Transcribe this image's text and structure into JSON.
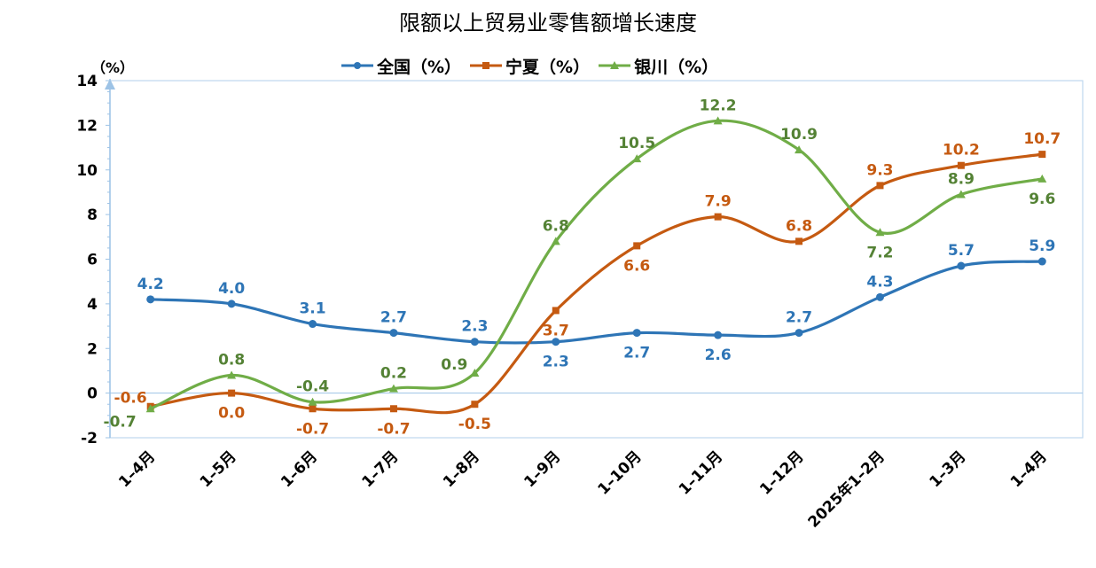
{
  "chart_data": {
    "type": "line",
    "title": "限额以上贸易业零售额增长速度",
    "ylabel": "（%）",
    "ylim": [
      -2,
      14
    ],
    "yticks": [
      -2,
      0,
      2,
      4,
      6,
      8,
      10,
      12,
      14
    ],
    "categories": [
      "1–4月",
      "1–5月",
      "1–6月",
      "1–7月",
      "1–8月",
      "1–9月",
      "1–10月",
      "1–11月",
      "1–12月",
      "2025年1–2月",
      "1–3月",
      "1–4月"
    ],
    "legend_position": "top-center",
    "grid": false,
    "series": [
      {
        "name": "全国（%）",
        "color": "#2E75B6",
        "marker": "circle",
        "values": [
          4.2,
          4.0,
          3.1,
          2.7,
          2.3,
          2.3,
          2.7,
          2.6,
          2.7,
          4.3,
          5.7,
          5.9
        ],
        "labels": [
          "4.2",
          "4.0",
          "3.1",
          "2.7",
          "2.3",
          "2.3",
          "2.7",
          "2.6",
          "2.7",
          "4.3",
          "5.7",
          "5.9"
        ]
      },
      {
        "name": "宁夏（%）",
        "color": "#C55A11",
        "marker": "square",
        "values": [
          -0.6,
          0.0,
          -0.7,
          -0.7,
          -0.5,
          3.7,
          6.6,
          7.9,
          6.8,
          9.3,
          10.2,
          10.7
        ],
        "labels": [
          "-0.6",
          "0.0",
          "-0.7",
          "-0.7",
          "-0.5",
          "3.7",
          "6.6",
          "7.9",
          "6.8",
          "9.3",
          "10.2",
          "10.7"
        ]
      },
      {
        "name": "银川（%）",
        "color": "#548235",
        "marker": "triangle",
        "values": [
          -0.7,
          0.8,
          -0.4,
          0.2,
          0.9,
          6.8,
          10.5,
          12.2,
          10.9,
          7.2,
          8.9,
          9.6
        ],
        "labels": [
          "-0.7",
          "0.8",
          "-0.4",
          "0.2",
          "0.9",
          "6.8",
          "10.5",
          "12.2",
          "10.9",
          "7.2",
          "8.9",
          "9.6"
        ]
      }
    ]
  }
}
